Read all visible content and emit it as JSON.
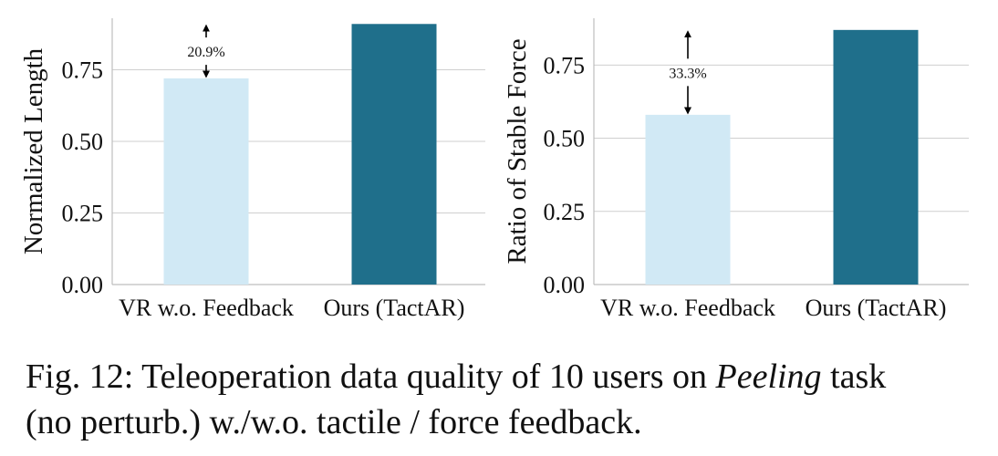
{
  "chart_data": [
    {
      "type": "bar",
      "categories": [
        "VR w.o. Feedback",
        "Ours (TactAR)"
      ],
      "values": [
        0.72,
        0.91
      ],
      "colors": [
        "#d1e9f5",
        "#1f6f8b"
      ],
      "title": "",
      "xlabel": "",
      "ylabel": "Normalized Length",
      "ylim": [
        0,
        0.93
      ],
      "yticks": [
        "0.00",
        "0.25",
        "0.50",
        "0.75"
      ],
      "grid": "horizontal",
      "annotation": {
        "text": "20.9%",
        "category": "VR w.o. Feedback"
      }
    },
    {
      "type": "bar",
      "categories": [
        "VR w.o. Feedback",
        "Ours (TactAR)"
      ],
      "values": [
        0.58,
        0.87
      ],
      "colors": [
        "#d1e9f5",
        "#1f6f8b"
      ],
      "title": "",
      "xlabel": "",
      "ylabel": "Ratio of Stable Force",
      "ylim": [
        0,
        0.91
      ],
      "yticks": [
        "0.00",
        "0.25",
        "0.50",
        "0.75"
      ],
      "grid": "horizontal",
      "annotation": {
        "text": "33.3%",
        "category": "VR w.o. Feedback"
      }
    }
  ],
  "caption": {
    "line1_prefix": "Fig. 12: Teleoperation data quality of 10 users on ",
    "line1_italic": "Peeling",
    "line1_suffix": " task",
    "line2": "(no perturb.) w./w.o. tactile / force feedback."
  }
}
